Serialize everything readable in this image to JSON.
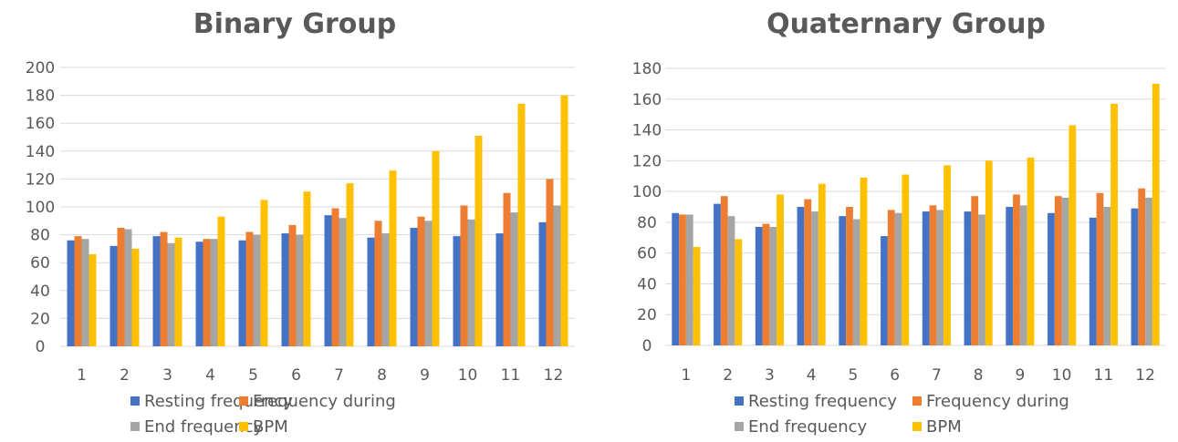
{
  "colors": {
    "resting": "#4472c4",
    "during": "#ed7d31",
    "end": "#a5a5a5",
    "bpm": "#ffc000"
  },
  "legend": [
    "Resting frequency",
    "Frequency during",
    "End frequency",
    "BPM"
  ],
  "chart_data": [
    {
      "type": "bar",
      "title": "Binary Group",
      "categories": [
        "1",
        "2",
        "3",
        "4",
        "5",
        "6",
        "7",
        "8",
        "9",
        "10",
        "11",
        "12"
      ],
      "ylim": [
        0,
        200
      ],
      "yticks": [
        0,
        20,
        40,
        60,
        80,
        100,
        120,
        140,
        160,
        180,
        200
      ],
      "grid": true,
      "legend_position": "bottom",
      "series": [
        {
          "name": "Resting frequency",
          "values": [
            76,
            72,
            79,
            75,
            76,
            81,
            94,
            78,
            85,
            79,
            81,
            89
          ]
        },
        {
          "name": "Frequency during",
          "values": [
            79,
            85,
            82,
            77,
            82,
            87,
            99,
            90,
            93,
            101,
            110,
            120
          ]
        },
        {
          "name": "End frequency",
          "values": [
            77,
            84,
            74,
            77,
            80,
            80,
            92,
            81,
            90,
            91,
            96,
            101
          ]
        },
        {
          "name": "BPM",
          "values": [
            66,
            70,
            78,
            93,
            105,
            111,
            117,
            126,
            140,
            151,
            174,
            180
          ]
        }
      ]
    },
    {
      "type": "bar",
      "title": "Quaternary Group",
      "categories": [
        "1",
        "2",
        "3",
        "4",
        "5",
        "6",
        "7",
        "8",
        "9",
        "10",
        "11",
        "12"
      ],
      "ylim": [
        0,
        180
      ],
      "yticks": [
        0,
        20,
        40,
        60,
        80,
        100,
        120,
        140,
        160,
        180
      ],
      "grid": true,
      "legend_position": "bottom",
      "series": [
        {
          "name": "Resting frequency",
          "values": [
            86,
            92,
            77,
            90,
            84,
            71,
            87,
            87,
            90,
            86,
            83,
            89
          ]
        },
        {
          "name": "Frequency during",
          "values": [
            85,
            97,
            79,
            95,
            90,
            88,
            91,
            97,
            98,
            97,
            99,
            102
          ]
        },
        {
          "name": "End frequency",
          "values": [
            85,
            84,
            77,
            87,
            82,
            86,
            88,
            85,
            91,
            96,
            90,
            96
          ]
        },
        {
          "name": "BPM",
          "values": [
            64,
            69,
            98,
            105,
            109,
            111,
            117,
            120,
            122,
            143,
            157,
            170
          ]
        }
      ]
    }
  ]
}
